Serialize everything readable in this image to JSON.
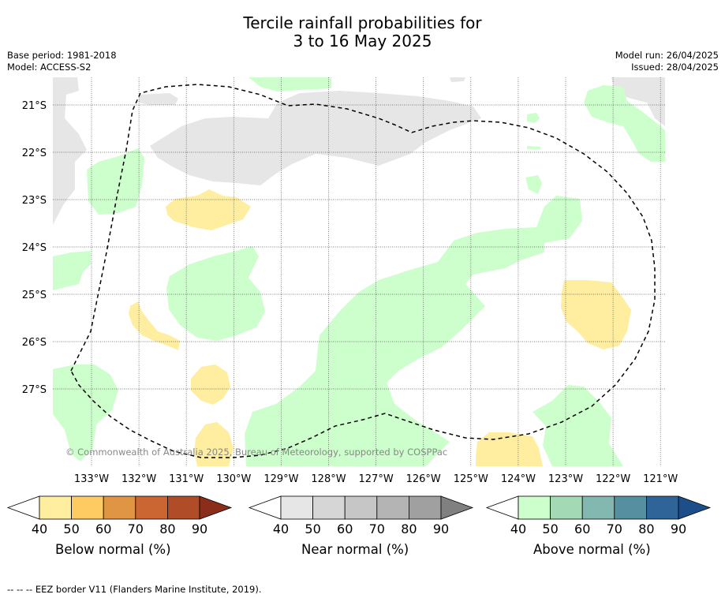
{
  "title": {
    "line1": "Tercile rainfall probabilities for",
    "line2": "3 to 16 May 2025"
  },
  "meta": {
    "base_period": "Base period: 1981-2018",
    "model": "Model: ACCESS-S2",
    "model_run": "Model run: 26/04/2025",
    "issued": "Issued: 28/04/2025"
  },
  "map": {
    "lat_labels": [
      "21°S",
      "22°S",
      "23°S",
      "24°S",
      "25°S",
      "26°S",
      "27°S"
    ],
    "lon_labels": [
      "133°W",
      "132°W",
      "131°W",
      "130°W",
      "129°W",
      "128°W",
      "127°W",
      "126°W",
      "125°W",
      "124°W",
      "123°W",
      "122°W",
      "121°W"
    ],
    "copyright": "© Commonwealth of Australia 2025, Bureau of Meteorology, supported by COSPPac",
    "colors": {
      "below_40": "#ffeda0",
      "near_40": "#e6e6e6",
      "above_40": "#ccffcc",
      "eez_border": "#000000"
    }
  },
  "legends": [
    {
      "name": "Below normal (%)",
      "ticks": [
        "40",
        "50",
        "60",
        "70",
        "80",
        "90"
      ],
      "colors": [
        "#ffffff",
        "#ffeda0",
        "#fecb62",
        "#e09545",
        "#cb6633",
        "#b04c28",
        "#8c2d1b"
      ]
    },
    {
      "name": "Near normal (%)",
      "ticks": [
        "40",
        "50",
        "60",
        "70",
        "80",
        "90"
      ],
      "colors": [
        "#ffffff",
        "#e6e6e6",
        "#d6d6d6",
        "#c6c6c6",
        "#b4b4b4",
        "#a0a0a0",
        "#808080"
      ]
    },
    {
      "name": "Above normal (%)",
      "ticks": [
        "40",
        "50",
        "60",
        "70",
        "80",
        "90"
      ],
      "colors": [
        "#ffffff",
        "#ccffcc",
        "#a4d9b5",
        "#82b8b0",
        "#568fa0",
        "#2f6499",
        "#1c4f8a"
      ]
    }
  ],
  "footnote": "--  --  -- EEZ border V11 (Flanders Marine Institute, 2019)."
}
